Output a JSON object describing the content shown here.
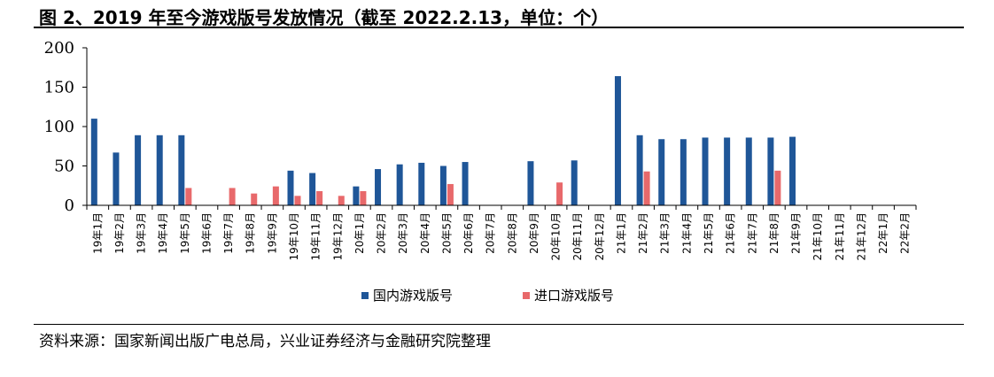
{
  "header": {
    "title": "图 2、2019 年至今游戏版号发放情况（截至 2022.2.13，单位：个）"
  },
  "footer": {
    "source": "资料来源：国家新闻出版广电总局，兴业证券经济与金融研究院整理"
  },
  "colors": {
    "domestic": "#1f5698",
    "imported": "#e8696b",
    "axis": "#000000"
  },
  "chart_data": {
    "type": "bar",
    "title": "",
    "xlabel": "",
    "ylabel": "",
    "ylim": [
      0,
      200
    ],
    "yticks": [
      0,
      50,
      100,
      150,
      200
    ],
    "grid": false,
    "legend_position": "bottom",
    "categories": [
      "19年1月",
      "19年2月",
      "19年3月",
      "19年4月",
      "19年5月",
      "19年6月",
      "19年7月",
      "19年8月",
      "19年9月",
      "19年10月",
      "19年11月",
      "19年12月",
      "20年1月",
      "20年2月",
      "20年3月",
      "20年4月",
      "20年5月",
      "20年6月",
      "20年7月",
      "20年8月",
      "20年9月",
      "20年10月",
      "20年11月",
      "20年12月",
      "21年1月",
      "21年2月",
      "21年3月",
      "21年4月",
      "21年5月",
      "21年6月",
      "21年7月",
      "21年8月",
      "21年9月",
      "21年10月",
      "21年11月",
      "21年12月",
      "22年1月",
      "22年2月"
    ],
    "series": [
      {
        "name": "国内游戏版号",
        "values": [
          110,
          67,
          89,
          89,
          89,
          0,
          0,
          0,
          0,
          44,
          41,
          0,
          24,
          46,
          52,
          54,
          50,
          55,
          0,
          0,
          56,
          0,
          57,
          0,
          164,
          89,
          84,
          84,
          86,
          86,
          86,
          86,
          87,
          0,
          0,
          0,
          0,
          0
        ]
      },
      {
        "name": "进口游戏版号",
        "values": [
          0,
          0,
          0,
          0,
          22,
          0,
          22,
          15,
          24,
          12,
          18,
          12,
          18,
          0,
          0,
          0,
          27,
          0,
          0,
          0,
          0,
          29,
          0,
          0,
          0,
          43,
          0,
          0,
          0,
          0,
          0,
          44,
          0,
          0,
          0,
          0,
          0,
          0
        ]
      }
    ]
  }
}
